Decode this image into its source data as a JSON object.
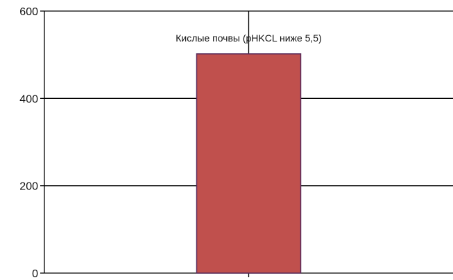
{
  "chart_data": {
    "type": "bar",
    "categories": [
      ""
    ],
    "values": [
      502
    ],
    "data_labels": [
      "Кислые почвы (pHKCL ниже 5,5)"
    ],
    "ylim": [
      0,
      600
    ],
    "yticks": [
      0,
      200,
      400,
      600
    ],
    "ytick_labels": [
      "0",
      "200",
      "400",
      "600"
    ],
    "grid": true,
    "legend": "none",
    "colors": {
      "bar_fill": "#c0504d",
      "bar_stroke": "#5a2a5a",
      "grid": "#000000",
      "axis": "#000000",
      "text": "#111111"
    }
  }
}
